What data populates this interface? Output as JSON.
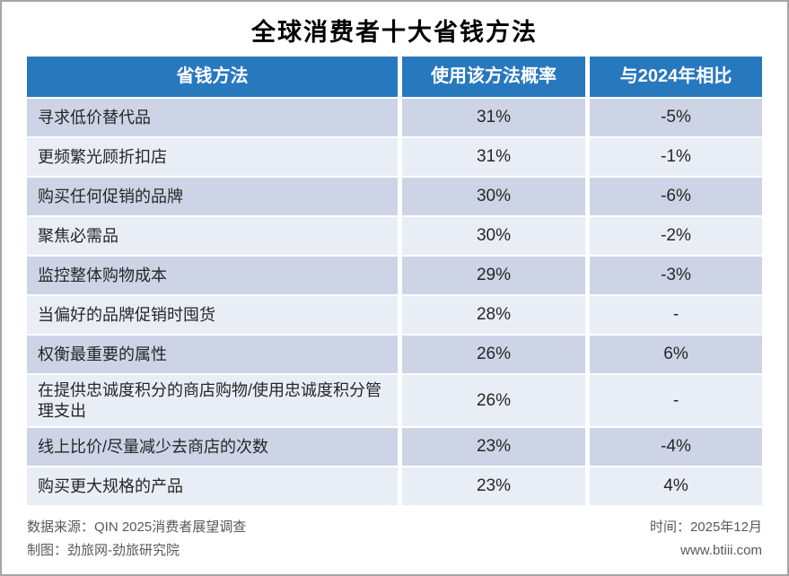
{
  "title": "全球消费者十大省钱方法",
  "colors": {
    "header_bg": "#2878be",
    "row_dark": "#ccd4e6",
    "row_light": "#e9edf5",
    "border_gray": "#a6a6a6",
    "footer_text": "#595959"
  },
  "chart_data": {
    "type": "table",
    "title": "全球消费者十大省钱方法",
    "columns": [
      "省钱方法",
      "使用该方法概率",
      "与2024年相比"
    ],
    "rows": [
      [
        "寻求低价替代品",
        "31%",
        "-5%"
      ],
      [
        "更频繁光顾折扣店",
        "31%",
        "-1%"
      ],
      [
        "购买任何促销的品牌",
        "30%",
        "-6%"
      ],
      [
        "聚焦必需品",
        "30%",
        "-2%"
      ],
      [
        "监控整体购物成本",
        "29%",
        "-3%"
      ],
      [
        "当偏好的品牌促销时囤货",
        "28%",
        "-"
      ],
      [
        "权衡最重要的属性",
        "26%",
        "6%"
      ],
      [
        "在提供忠诚度积分的商店购物/使用忠诚度积分管理支出",
        "26%",
        "-"
      ],
      [
        "线上比价/尽量减少去商店的次数",
        "23%",
        "-4%"
      ],
      [
        "购买更大规格的产品",
        "23%",
        "4%"
      ]
    ]
  },
  "footer": {
    "source": "数据来源：QIN 2025消费者展望调查",
    "credit": "制图：劲旅网-劲旅研究院",
    "time": "时间：2025年12月",
    "website": "www.btiii.com"
  }
}
